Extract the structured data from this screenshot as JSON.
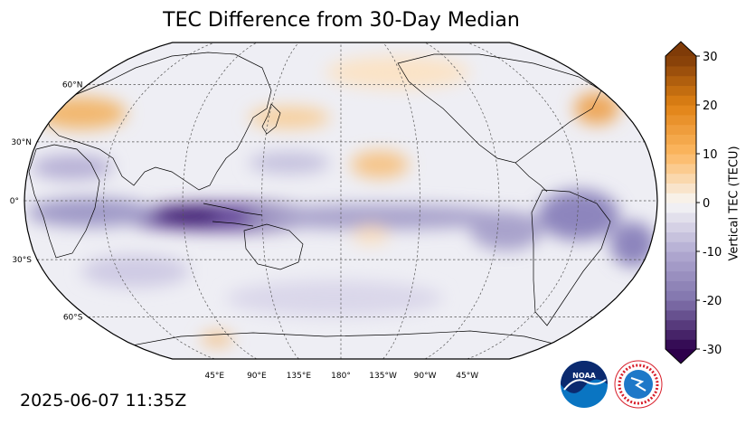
{
  "title": "TEC Difference from 30-Day Median",
  "timestamp": "2025-06-07 11:35Z",
  "colorbar": {
    "label": "Vertical TEC (TECU)",
    "ticks": [
      "30",
      "20",
      "10",
      "0",
      "-10",
      "-20",
      "-30"
    ],
    "range": [
      -30,
      30
    ],
    "colors": {
      "max": "#7f3b08",
      "high": "#e08214",
      "mid_high": "#fdb863",
      "zero": "#f7f7f7",
      "mid_low": "#b2abd2",
      "low": "#8073ac",
      "min": "#2d004b"
    }
  },
  "map": {
    "projection": "Robinson",
    "center_longitude": 180,
    "lat_labels": [
      "60°N",
      "30°N",
      "0°",
      "30°S",
      "60°S"
    ],
    "lon_labels": [
      "45°E",
      "90°E",
      "135°E",
      "180°",
      "135°W",
      "90°W",
      "45°W"
    ]
  },
  "logos": {
    "noaa": "NOAA",
    "nws": "NATIONAL WEATHER SERVICE"
  }
}
